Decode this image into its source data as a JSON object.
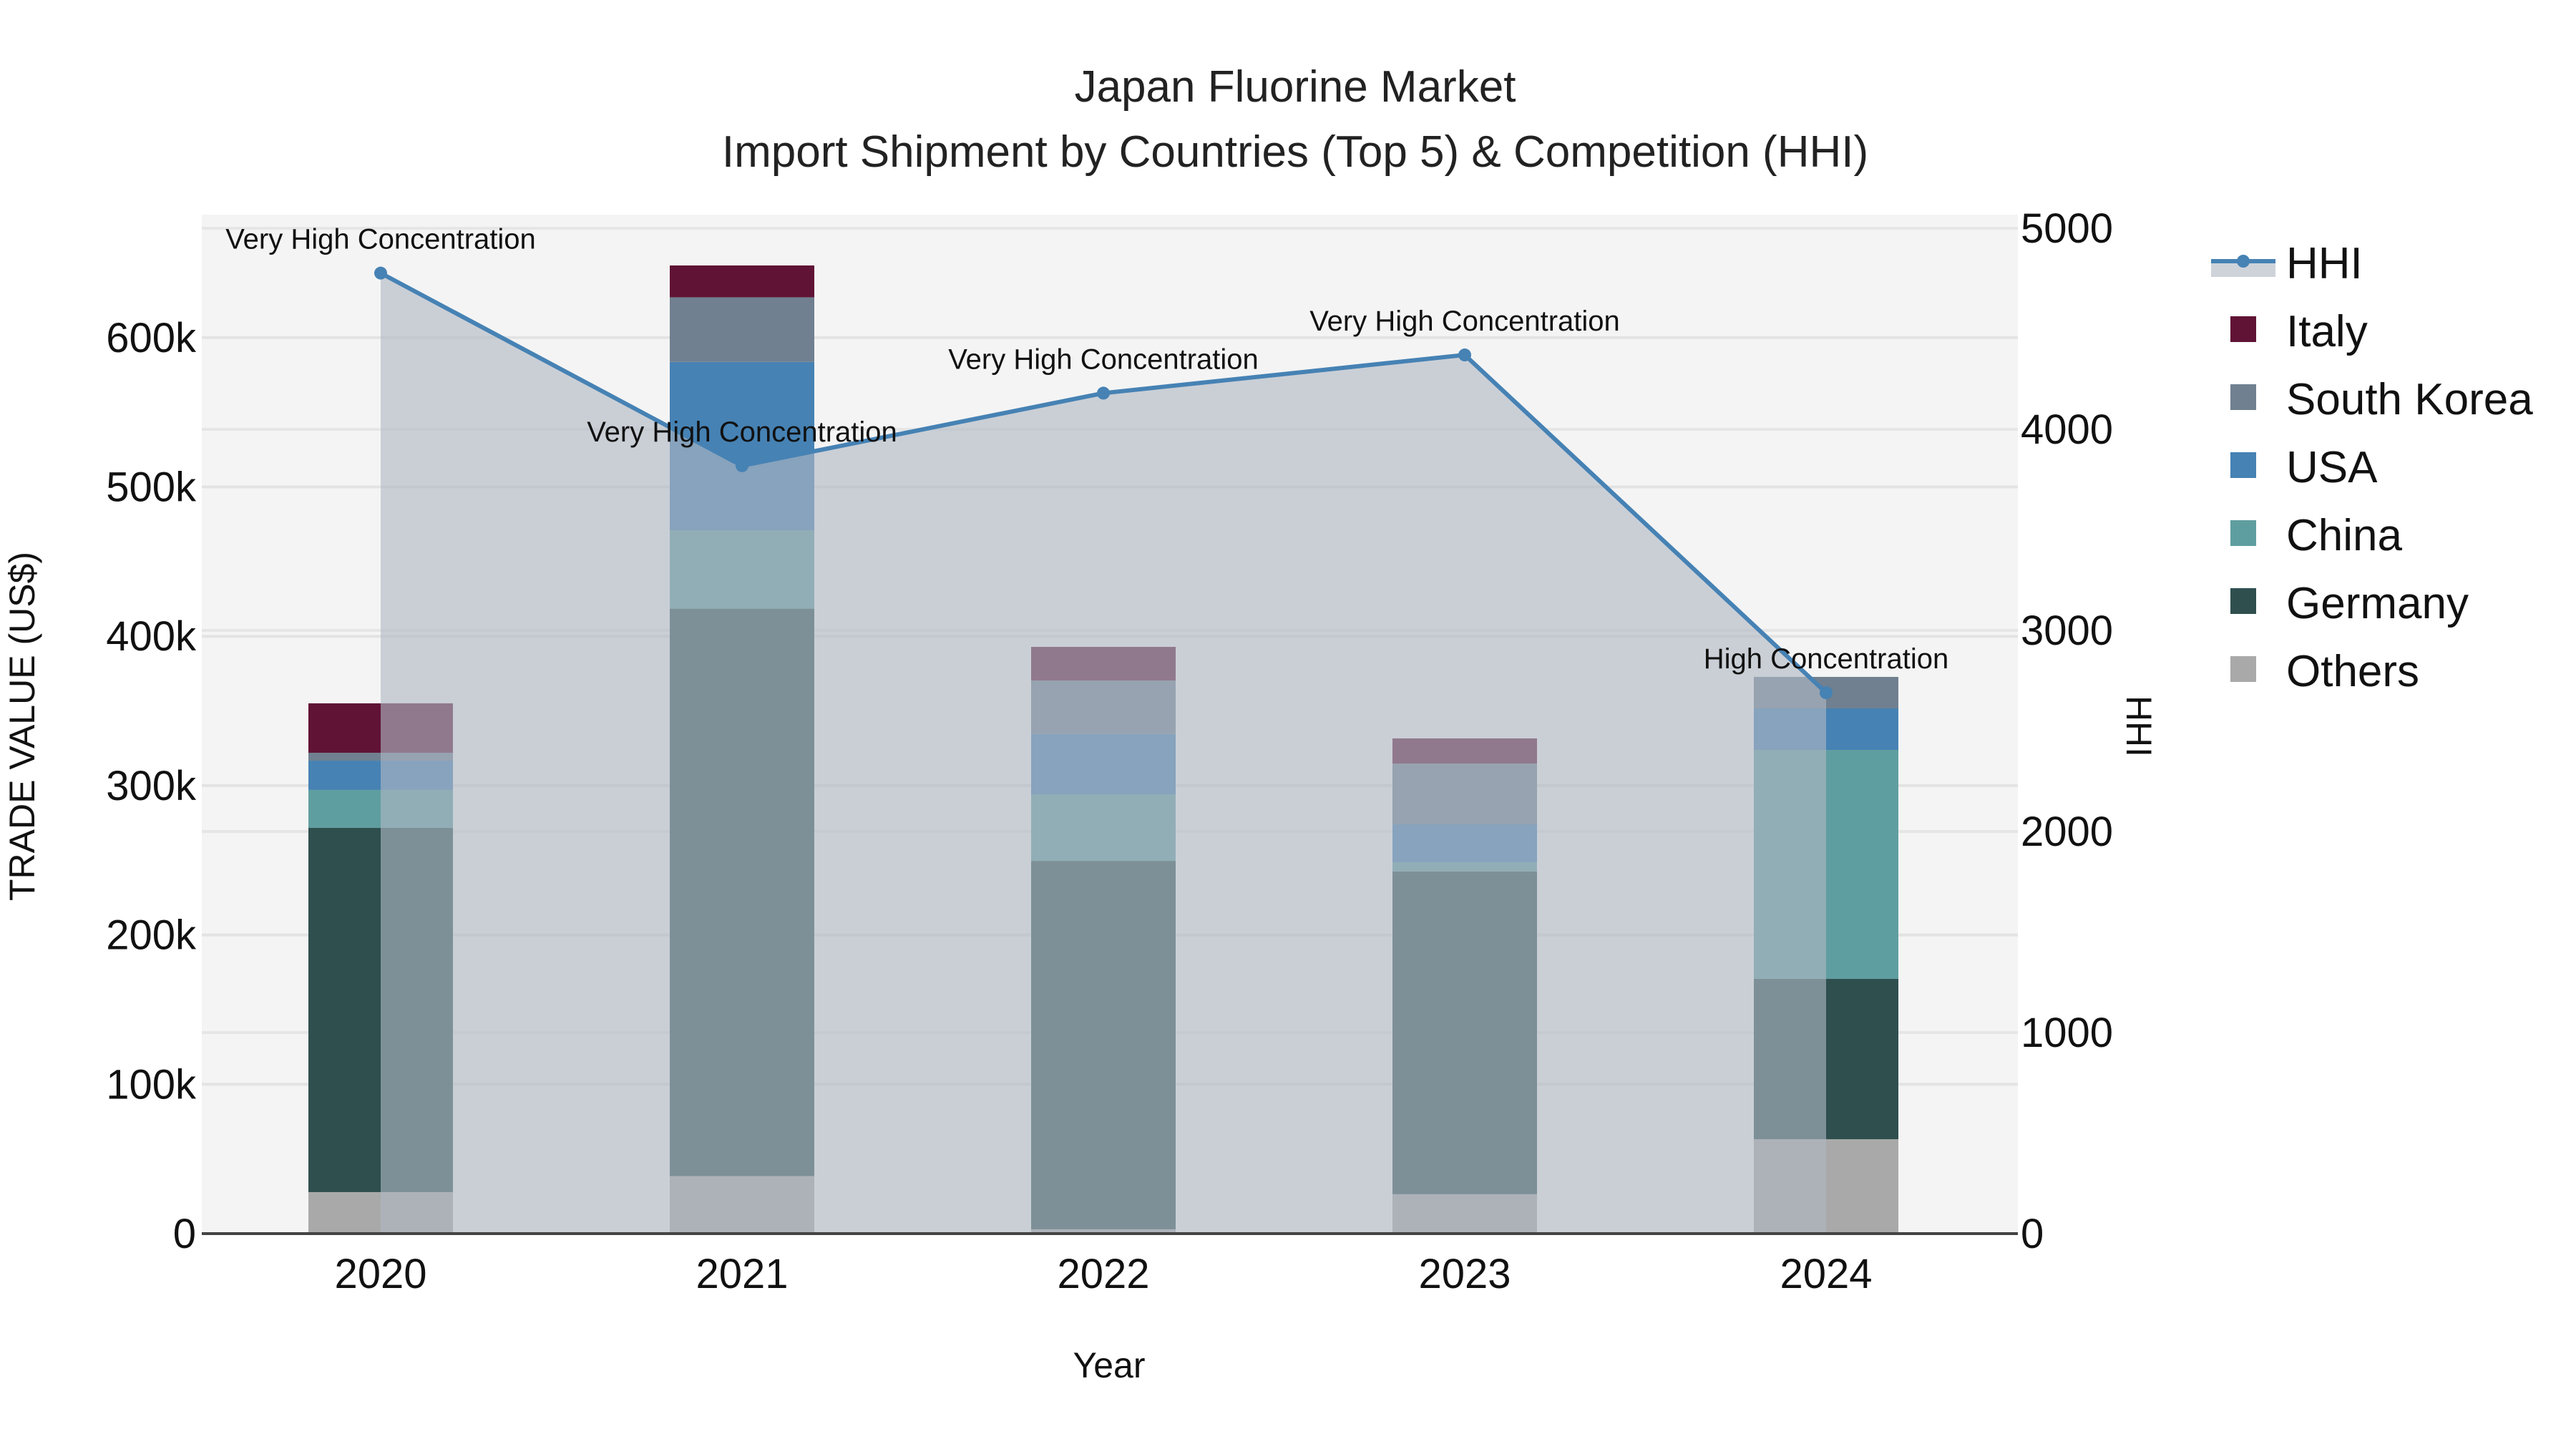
{
  "chart_data": {
    "type": "bar",
    "stacked": true,
    "title": "Japan Fluorine Market",
    "subtitle": "Import Shipment by Countries (Top 5) & Competition (HHI)",
    "xlabel": "Year",
    "ylabel": "TRADE VALUE (US$)",
    "y2label": "HHI",
    "categories": [
      "2020",
      "2021",
      "2022",
      "2023",
      "2024"
    ],
    "ylim": [
      0,
      682000
    ],
    "yticks": [
      0,
      100000,
      200000,
      300000,
      400000,
      500000,
      600000
    ],
    "ytick_labels": [
      "0",
      "100k",
      "200k",
      "300k",
      "400k",
      "500k",
      "600k"
    ],
    "y2lim": [
      0,
      5050
    ],
    "y2ticks": [
      0,
      1000,
      2000,
      3000,
      4000,
      5000
    ],
    "y2tick_labels": [
      "0",
      "1000",
      "2000",
      "3000",
      "4000",
      "5000"
    ],
    "grid": true,
    "legend_position": "right",
    "series": [
      {
        "name": "Others",
        "color": "#a9a9a9",
        "values": [
          27800,
          38500,
          2900,
          26400,
          63200
        ]
      },
      {
        "name": "Germany",
        "color": "#2f4f4f",
        "values": [
          243900,
          380000,
          246700,
          216100,
          107400
        ]
      },
      {
        "name": "China",
        "color": "#5f9ea0",
        "values": [
          25400,
          52500,
          44600,
          6200,
          153300
        ]
      },
      {
        "name": "USA",
        "color": "#4682b4",
        "values": [
          19600,
          112700,
          40400,
          25400,
          27800
        ]
      },
      {
        "name": "South Korea",
        "color": "#708090",
        "values": [
          5300,
          43300,
          35800,
          40700,
          21100
        ]
      },
      {
        "name": "Italy",
        "color": "#601335",
        "values": [
          33100,
          21300,
          22500,
          16800,
          0
        ]
      }
    ],
    "line_series": {
      "name": "HHI",
      "axis": "y2",
      "color": "#4682b4",
      "fill_color": "rgba(176,184,196,0.62)",
      "values": [
        4777,
        3819,
        4180,
        4370,
        2690
      ],
      "annotations": [
        "Very High Concentration",
        "Very High Concentration",
        "Very High Concentration",
        "Very High Concentration",
        "High Concentration"
      ]
    },
    "legend_order": [
      "HHI",
      "Italy",
      "South Korea",
      "USA",
      "China",
      "Germany",
      "Others"
    ]
  }
}
